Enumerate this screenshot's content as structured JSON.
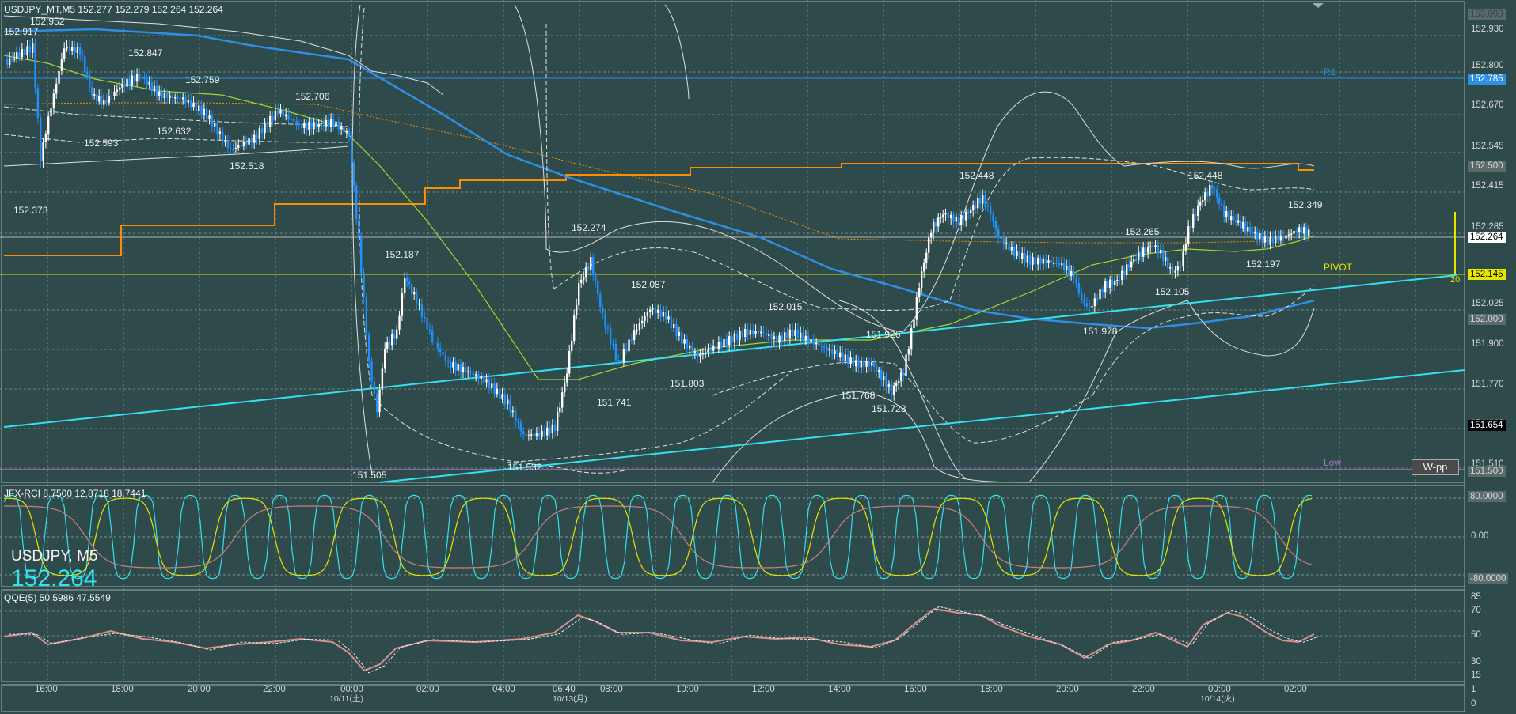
{
  "header": {
    "symbol_tf": "USDJPY_MT,M5",
    "ohlc": "152.277 152.279 152.264 152.264"
  },
  "overlay": {
    "symbol": "USDJPY, M5",
    "price": "152.264"
  },
  "lines": {
    "r1": "R1",
    "pivot": "PIVOT",
    "low": "Low",
    "pivot_num": "20",
    "wpp_button": "W-pp"
  },
  "price_axis": {
    "ticks": [
      "152.930",
      "152.800",
      "152.670",
      "152.545",
      "152.415",
      "152.285",
      "152.025",
      "151.900",
      "151.770",
      "151.640",
      "151.510"
    ],
    "tags": {
      "t1": "153.000",
      "t2": "152.785",
      "t3": "152.500",
      "t4": "152.264",
      "t5": "152.145",
      "t6": "152.000",
      "t7": "151.654",
      "t8": "151.500"
    }
  },
  "price_labels": [
    "152.917",
    "152.952",
    "152.847",
    "152.759",
    "152.706",
    "152.632",
    "152.593",
    "152.518",
    "152.373",
    "152.187",
    "152.274",
    "152.087",
    "152.015",
    "151.926",
    "151.741",
    "151.803",
    "151.768",
    "151.723",
    "151.505",
    "151.532",
    "152.448",
    "152.265",
    "152.448",
    "152.349",
    "152.197",
    "152.105",
    "151.978"
  ],
  "rci": {
    "title": "JFX-RCI 8.7500 12.8718 18.7441",
    "ticks": {
      "t80": "80.0000",
      "t0": "0.00",
      "tm80": "-80.0000"
    }
  },
  "qqe": {
    "title": "QQE(5) 50.5986 47.5549",
    "ticks": [
      "85",
      "70",
      "50",
      "30",
      "15"
    ]
  },
  "volume": {
    "ticks": [
      "1",
      "0"
    ]
  },
  "time_axis": [
    "16:00",
    "18:00",
    "20:00",
    "22:00",
    "00:00",
    "10/11(土)",
    "02:00",
    "04:00",
    "06:40",
    "10/13(月)",
    "08:00",
    "10:00",
    "12:00",
    "14:00",
    "16:00",
    "18:00",
    "20:00",
    "22:00",
    "00:00",
    "10/14(火)",
    "02:00"
  ],
  "colors": {
    "bg": "#2e4a4a",
    "candle": "#ffffff",
    "bear": "#1e90ff",
    "ma_blue": "#2f8fe6",
    "orange": "#ff8c00",
    "trend": "#35e0f0",
    "pivot": "#e6e600",
    "low": "#b070d0"
  }
}
